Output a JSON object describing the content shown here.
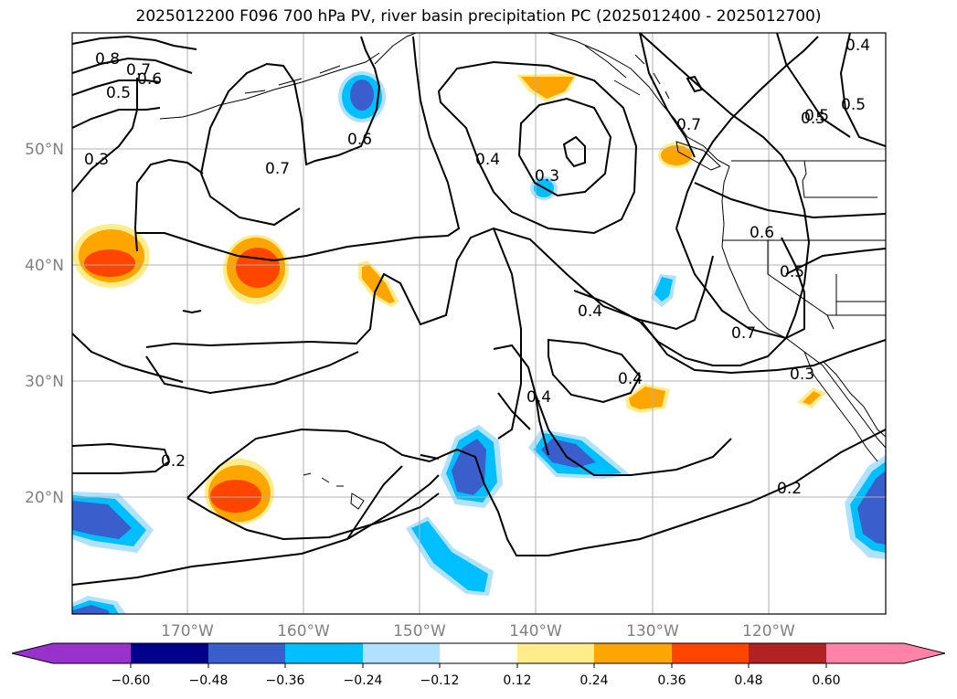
{
  "title": "2025012200 F096 700 hPa PV, river basin precipitation PC (2025012400 - 2025012700)",
  "map": {
    "lat_labels": [
      "50°N",
      "40°N",
      "30°N",
      "20°N"
    ],
    "lon_labels": [
      "170°W",
      "160°W",
      "150°W",
      "140°W",
      "130°W",
      "120°W"
    ],
    "contour_labels": [
      "0.8",
      "0.7",
      "0.6",
      "0.5",
      "0.3",
      "0.7",
      "0.6",
      "0.4",
      "0.3",
      "0.4",
      "0.5",
      "0.7",
      "0.6",
      "0.5",
      "0.7",
      "0.4",
      "0.4",
      "0.3",
      "0.2",
      "0.2",
      "0.4",
      "0.5",
      "0.5"
    ]
  },
  "colorbar": {
    "ticks": [
      "−0.60",
      "−0.48",
      "−0.36",
      "−0.24",
      "−0.12",
      "0.12",
      "0.24",
      "0.36",
      "0.48",
      "0.60"
    ],
    "colors": [
      "#9932cc",
      "#00008b",
      "#3a5fcd",
      "#00bfff",
      "#b0e2ff",
      "#ffffff",
      "#ffec8b",
      "#ffa500",
      "#ff4500",
      "#b22222",
      "#ff82ab"
    ]
  },
  "colors": {
    "coastline": "#000000",
    "grid": "#b0b0b0",
    "contour": "#000000"
  }
}
